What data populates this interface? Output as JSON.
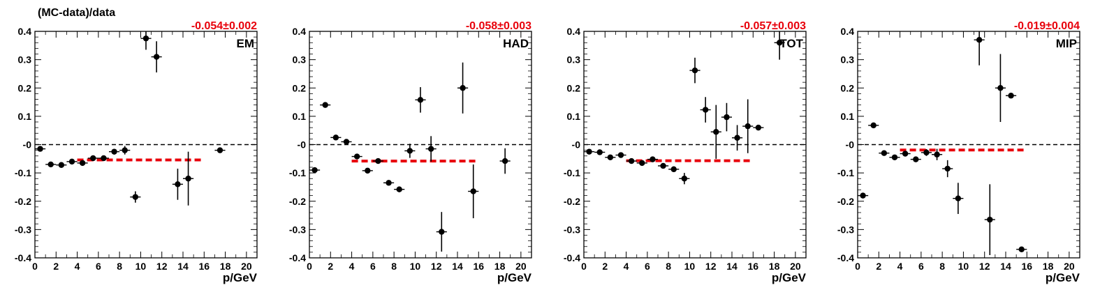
{
  "figure": {
    "ylabel": "(MC-data)/data"
  },
  "chart_data": [
    {
      "type": "scatter",
      "panel_label": "EM",
      "fit_text": "-0.054±0.002",
      "fit_value": -0.054,
      "fit_range": [
        4,
        16
      ],
      "xlabel": "p/GeV",
      "xlim": [
        0,
        21
      ],
      "ylim": [
        -0.4,
        0.4
      ],
      "xticks": [
        "0",
        "2",
        "4",
        "6",
        "8",
        "10",
        "12",
        "14",
        "16",
        "18",
        "20"
      ],
      "yticks": [
        "-0.4",
        "-0.3",
        "-0.2",
        "-0.1",
        "-0",
        "0.1",
        "0.2",
        "0.3",
        "0.4"
      ],
      "reference_line": 0,
      "points": [
        {
          "x": 0.5,
          "y": -0.015,
          "err": 0.005
        },
        {
          "x": 1.5,
          "y": -0.07,
          "err": 0.005
        },
        {
          "x": 2.5,
          "y": -0.072,
          "err": 0.005
        },
        {
          "x": 3.5,
          "y": -0.06,
          "err": 0.005
        },
        {
          "x": 4.5,
          "y": -0.065,
          "err": 0.005
        },
        {
          "x": 5.5,
          "y": -0.048,
          "err": 0.005
        },
        {
          "x": 6.5,
          "y": -0.048,
          "err": 0.005
        },
        {
          "x": 7.5,
          "y": -0.025,
          "err": 0.01
        },
        {
          "x": 8.5,
          "y": -0.02,
          "err": 0.015
        },
        {
          "x": 9.5,
          "y": -0.185,
          "err": 0.02
        },
        {
          "x": 10.5,
          "y": 0.375,
          "err": 0.04
        },
        {
          "x": 11.5,
          "y": 0.31,
          "err": 0.055
        },
        {
          "x": 13.5,
          "y": -0.14,
          "err": 0.055
        },
        {
          "x": 14.5,
          "y": -0.12,
          "err": 0.095
        },
        {
          "x": 17.5,
          "y": -0.02,
          "err": 0.005
        }
      ]
    },
    {
      "type": "scatter",
      "panel_label": "HAD",
      "fit_text": "-0.058±0.003",
      "fit_value": -0.058,
      "fit_range": [
        4,
        16
      ],
      "xlabel": "p/GeV",
      "xlim": [
        0,
        21
      ],
      "ylim": [
        -0.4,
        0.4
      ],
      "xticks": [
        "0",
        "2",
        "4",
        "6",
        "8",
        "10",
        "12",
        "14",
        "16",
        "18",
        "20"
      ],
      "yticks": [
        "-0.4",
        "-0.3",
        "-0.2",
        "-0.1",
        "-0",
        "0.1",
        "0.2",
        "0.3",
        "0.4"
      ],
      "reference_line": 0,
      "points": [
        {
          "x": 0.5,
          "y": -0.09,
          "err": 0.005
        },
        {
          "x": 1.5,
          "y": 0.14,
          "err": 0.005
        },
        {
          "x": 2.5,
          "y": 0.025,
          "err": 0.005
        },
        {
          "x": 3.5,
          "y": 0.01,
          "err": 0.005
        },
        {
          "x": 4.5,
          "y": -0.042,
          "err": 0.005
        },
        {
          "x": 5.5,
          "y": -0.092,
          "err": 0.005
        },
        {
          "x": 6.5,
          "y": -0.058,
          "err": 0.005
        },
        {
          "x": 7.5,
          "y": -0.135,
          "err": 0.006
        },
        {
          "x": 8.5,
          "y": -0.158,
          "err": 0.01
        },
        {
          "x": 9.5,
          "y": -0.022,
          "err": 0.025
        },
        {
          "x": 10.5,
          "y": 0.158,
          "err": 0.045
        },
        {
          "x": 11.5,
          "y": -0.015,
          "err": 0.045
        },
        {
          "x": 12.5,
          "y": -0.308,
          "err": 0.07
        },
        {
          "x": 14.5,
          "y": 0.2,
          "err": 0.09
        },
        {
          "x": 15.5,
          "y": -0.165,
          "err": 0.095
        },
        {
          "x": 18.5,
          "y": -0.058,
          "err": 0.045
        }
      ]
    },
    {
      "type": "scatter",
      "panel_label": "TOT",
      "fit_text": "-0.057±0.003",
      "fit_value": -0.057,
      "fit_range": [
        4,
        16
      ],
      "xlabel": "p/GeV",
      "xlim": [
        0,
        21
      ],
      "ylim": [
        -0.4,
        0.4
      ],
      "xticks": [
        "0",
        "2",
        "4",
        "6",
        "8",
        "10",
        "12",
        "14",
        "16",
        "18",
        "20"
      ],
      "yticks": [
        "-0.4",
        "-0.3",
        "-0.2",
        "-0.1",
        "-0",
        "0.1",
        "0.2",
        "0.3",
        "0.4"
      ],
      "reference_line": 0,
      "points": [
        {
          "x": 0.5,
          "y": -0.025,
          "err": 0.005
        },
        {
          "x": 1.5,
          "y": -0.027,
          "err": 0.005
        },
        {
          "x": 2.5,
          "y": -0.045,
          "err": 0.005
        },
        {
          "x": 3.5,
          "y": -0.037,
          "err": 0.005
        },
        {
          "x": 4.5,
          "y": -0.058,
          "err": 0.005
        },
        {
          "x": 5.5,
          "y": -0.065,
          "err": 0.005
        },
        {
          "x": 6.5,
          "y": -0.052,
          "err": 0.005
        },
        {
          "x": 7.5,
          "y": -0.075,
          "err": 0.006
        },
        {
          "x": 8.5,
          "y": -0.087,
          "err": 0.01
        },
        {
          "x": 9.5,
          "y": -0.12,
          "err": 0.02
        },
        {
          "x": 10.5,
          "y": 0.262,
          "err": 0.045
        },
        {
          "x": 11.5,
          "y": 0.123,
          "err": 0.045
        },
        {
          "x": 12.5,
          "y": 0.045,
          "err": 0.095
        },
        {
          "x": 13.5,
          "y": 0.097,
          "err": 0.05
        },
        {
          "x": 14.5,
          "y": 0.024,
          "err": 0.045
        },
        {
          "x": 15.5,
          "y": 0.065,
          "err": 0.095
        },
        {
          "x": 16.5,
          "y": 0.06,
          "err": 0.005
        },
        {
          "x": 18.5,
          "y": 0.36,
          "err": 0.06
        }
      ]
    },
    {
      "type": "scatter",
      "panel_label": "MIP",
      "fit_text": "-0.019±0.004",
      "fit_value": -0.019,
      "fit_range": [
        4,
        16
      ],
      "xlabel": "p/GeV",
      "xlim": [
        0,
        21
      ],
      "ylim": [
        -0.4,
        0.4
      ],
      "xticks": [
        "0",
        "2",
        "4",
        "6",
        "8",
        "10",
        "12",
        "14",
        "16",
        "18",
        "20"
      ],
      "yticks": [
        "-0.4",
        "-0.3",
        "-0.2",
        "-0.1",
        "-0",
        "0.1",
        "0.2",
        "0.3",
        "0.4"
      ],
      "reference_line": 0,
      "points": [
        {
          "x": 0.5,
          "y": -0.18,
          "err": 0.005
        },
        {
          "x": 1.5,
          "y": 0.068,
          "err": 0.005
        },
        {
          "x": 2.5,
          "y": -0.03,
          "err": 0.005
        },
        {
          "x": 3.5,
          "y": -0.045,
          "err": 0.005
        },
        {
          "x": 4.5,
          "y": -0.032,
          "err": 0.005
        },
        {
          "x": 5.5,
          "y": -0.052,
          "err": 0.005
        },
        {
          "x": 6.5,
          "y": -0.028,
          "err": 0.012
        },
        {
          "x": 7.5,
          "y": -0.035,
          "err": 0.02
        },
        {
          "x": 8.5,
          "y": -0.085,
          "err": 0.03
        },
        {
          "x": 9.5,
          "y": -0.19,
          "err": 0.055
        },
        {
          "x": 11.5,
          "y": 0.37,
          "err": 0.09
        },
        {
          "x": 12.5,
          "y": -0.265,
          "err": 0.125
        },
        {
          "x": 13.5,
          "y": 0.2,
          "err": 0.12
        },
        {
          "x": 14.5,
          "y": 0.173,
          "err": 0.005
        },
        {
          "x": 15.5,
          "y": -0.37,
          "err": 0.005
        }
      ]
    }
  ]
}
